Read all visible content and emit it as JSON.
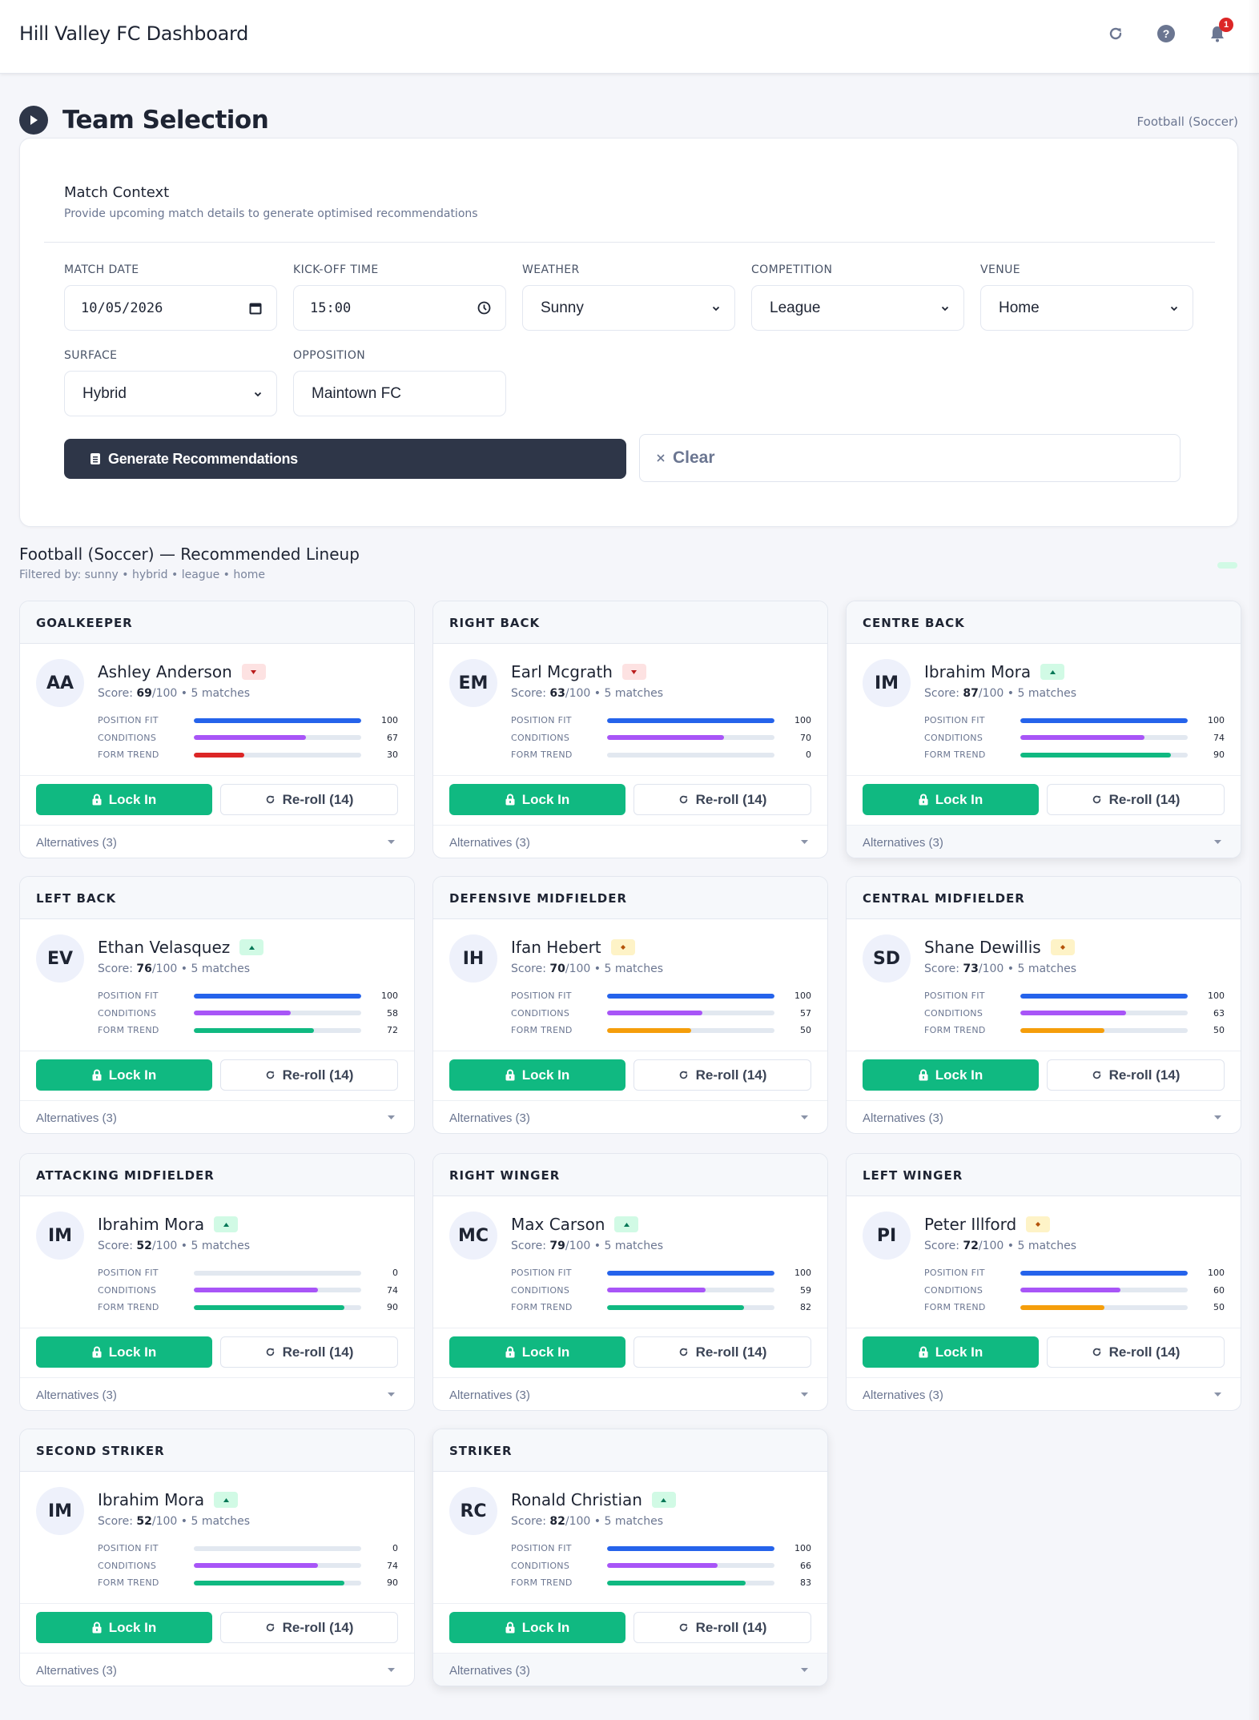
{
  "header": {
    "app_title": "Hill Valley FC Dashboard",
    "icons": [
      "refresh-icon",
      "help-icon",
      "bell-icon"
    ],
    "notification_count": "1"
  },
  "page": {
    "title": "Team Selection",
    "sport_label": "Football (Soccer)"
  },
  "match_context": {
    "title": "Match Context",
    "subtitle": "Provide upcoming match details to generate optimised recommendations",
    "fields": {
      "match_date": {
        "label": "Match Date",
        "value": "10/05/2026"
      },
      "kickoff_time": {
        "label": "Kick-off Time",
        "value": "15:00"
      },
      "weather": {
        "label": "Weather",
        "value": "Sunny"
      },
      "competition": {
        "label": "Competition",
        "value": "League"
      },
      "venue": {
        "label": "Venue",
        "value": "Home"
      },
      "surface": {
        "label": "Surface",
        "value": "Hybrid"
      },
      "opposition": {
        "label": "Opposition",
        "value": "Maintown FC"
      }
    },
    "generate_label": "Generate Recommendations",
    "clear_label": "Clear"
  },
  "lineup": {
    "title": "Football (Soccer) — Recommended Lineup",
    "filter_text": "Filtered by: sunny • hybrid • league • home",
    "metric_labels": [
      "Position Fit",
      "Conditions",
      "Form Trend"
    ],
    "lock_label": "Lock In",
    "reroll_label": "Re-roll (14)",
    "alternatives_label": "Alternatives (3)",
    "colors": {
      "position_fit": "#2563eb",
      "conditions": "#a855f7",
      "form_up": "#10b981",
      "form_flat": "#f59e0b",
      "form_down": "#dc2626",
      "lock": "#10b981"
    },
    "positions": [
      {
        "position": "Goalkeeper",
        "initials": "AA",
        "name": "Ashley Anderson",
        "trend": "down",
        "score": "69",
        "matches": "5 matches",
        "position_fit": 100,
        "conditions": 67,
        "form_trend": 30
      },
      {
        "position": "Right Back",
        "initials": "EM",
        "name": "Earl Mcgrath",
        "trend": "down",
        "score": "63",
        "matches": "5 matches",
        "position_fit": 100,
        "conditions": 70,
        "form_trend": 0
      },
      {
        "position": "Centre Back",
        "initials": "IM",
        "name": "Ibrahim Mora",
        "trend": "up",
        "score": "87",
        "matches": "5 matches",
        "position_fit": 100,
        "conditions": 74,
        "form_trend": 90
      },
      {
        "position": "Left Back",
        "initials": "EV",
        "name": "Ethan Velasquez",
        "trend": "up",
        "score": "76",
        "matches": "5 matches",
        "position_fit": 100,
        "conditions": 58,
        "form_trend": 72
      },
      {
        "position": "Defensive Midfielder",
        "initials": "IH",
        "name": "Ifan Hebert",
        "trend": "flat",
        "score": "70",
        "matches": "5 matches",
        "position_fit": 100,
        "conditions": 57,
        "form_trend": 50
      },
      {
        "position": "Central Midfielder",
        "initials": "SD",
        "name": "Shane Dewillis",
        "trend": "flat",
        "score": "73",
        "matches": "5 matches",
        "position_fit": 100,
        "conditions": 63,
        "form_trend": 50
      },
      {
        "position": "Attacking Midfielder",
        "initials": "IM",
        "name": "Ibrahim Mora",
        "trend": "up",
        "score": "52",
        "matches": "5 matches",
        "position_fit": 0,
        "conditions": 74,
        "form_trend": 90
      },
      {
        "position": "Right Winger",
        "initials": "MC",
        "name": "Max Carson",
        "trend": "up",
        "score": "79",
        "matches": "5 matches",
        "position_fit": 100,
        "conditions": 59,
        "form_trend": 82
      },
      {
        "position": "Left Winger",
        "initials": "PI",
        "name": "Peter Illford",
        "trend": "flat",
        "score": "72",
        "matches": "5 matches",
        "position_fit": 100,
        "conditions": 60,
        "form_trend": 50
      },
      {
        "position": "Second Striker",
        "initials": "IM",
        "name": "Ibrahim Mora",
        "trend": "up",
        "score": "52",
        "matches": "5 matches",
        "position_fit": 0,
        "conditions": 74,
        "form_trend": 90
      },
      {
        "position": "Striker",
        "initials": "RC",
        "name": "Ronald Christian",
        "trend": "up",
        "score": "82",
        "matches": "5 matches",
        "position_fit": 100,
        "conditions": 66,
        "form_trend": 83
      }
    ]
  }
}
